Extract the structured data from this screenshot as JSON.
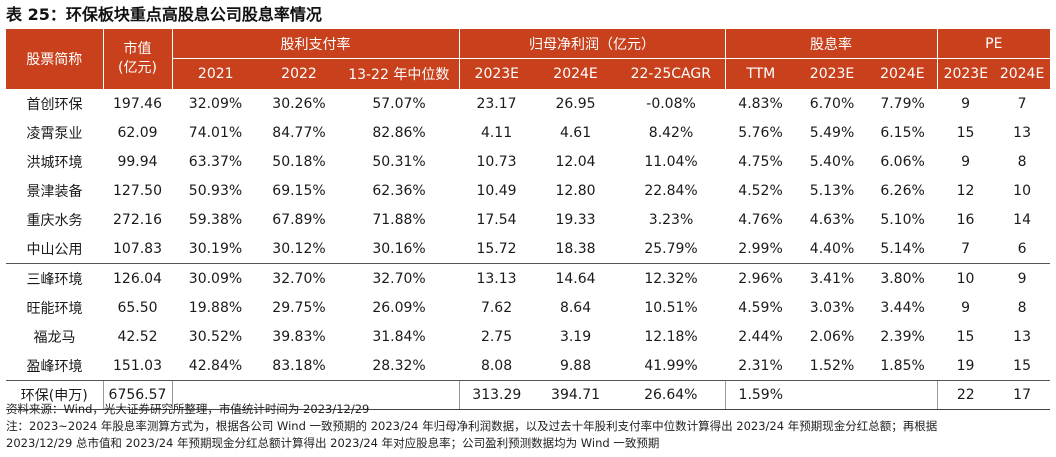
{
  "title": "表 25：环保板块重点高股息公司股息率情况",
  "header": {
    "stock_name": "股票简称",
    "market_cap_line1": "市值",
    "market_cap_line2": "(亿元)",
    "payout_group": "股利支付率",
    "profit_group": "归母净利润（亿元）",
    "yield_group": "股息率",
    "pe_group": "PE",
    "sub": [
      "2021",
      "2022",
      "13-22 年中位数",
      "2023E",
      "2024E",
      "22-25CAGR",
      "TTM",
      "2023E",
      "2024E",
      "2023E",
      "2024E"
    ]
  },
  "rows": [
    {
      "name": "首创环保",
      "mcap": "197.46",
      "p2021": "32.09%",
      "p2022": "30.26%",
      "pmed": "57.07%",
      "np23": "23.17",
      "np24": "26.95",
      "cagr": "-0.08%",
      "ttm": "4.83%",
      "y23": "6.70%",
      "y24": "7.79%",
      "pe23": "9",
      "pe24": "7"
    },
    {
      "name": "凌霄泵业",
      "mcap": "62.09",
      "p2021": "74.01%",
      "p2022": "84.77%",
      "pmed": "82.86%",
      "np23": "4.11",
      "np24": "4.61",
      "cagr": "8.42%",
      "ttm": "5.76%",
      "y23": "5.49%",
      "y24": "6.15%",
      "pe23": "15",
      "pe24": "13"
    },
    {
      "name": "洪城环境",
      "mcap": "99.94",
      "p2021": "63.37%",
      "p2022": "50.18%",
      "pmed": "50.31%",
      "np23": "10.73",
      "np24": "12.04",
      "cagr": "11.04%",
      "ttm": "4.75%",
      "y23": "5.40%",
      "y24": "6.06%",
      "pe23": "9",
      "pe24": "8"
    },
    {
      "name": "景津装备",
      "mcap": "127.50",
      "p2021": "50.93%",
      "p2022": "69.15%",
      "pmed": "62.36%",
      "np23": "10.49",
      "np24": "12.80",
      "cagr": "22.84%",
      "ttm": "4.52%",
      "y23": "5.13%",
      "y24": "6.26%",
      "pe23": "12",
      "pe24": "10"
    },
    {
      "name": "重庆水务",
      "mcap": "272.16",
      "p2021": "59.38%",
      "p2022": "67.89%",
      "pmed": "71.88%",
      "np23": "17.54",
      "np24": "19.33",
      "cagr": "3.23%",
      "ttm": "4.76%",
      "y23": "4.63%",
      "y24": "5.10%",
      "pe23": "16",
      "pe24": "14"
    },
    {
      "name": "中山公用",
      "mcap": "107.83",
      "p2021": "30.19%",
      "p2022": "30.12%",
      "pmed": "30.16%",
      "np23": "15.72",
      "np24": "18.38",
      "cagr": "25.79%",
      "ttm": "2.99%",
      "y23": "4.40%",
      "y24": "5.14%",
      "pe23": "7",
      "pe24": "6"
    },
    {
      "name": "三峰环境",
      "mcap": "126.04",
      "p2021": "30.09%",
      "p2022": "32.70%",
      "pmed": "32.70%",
      "np23": "13.13",
      "np24": "14.64",
      "cagr": "12.32%",
      "ttm": "2.96%",
      "y23": "3.41%",
      "y24": "3.80%",
      "pe23": "10",
      "pe24": "9"
    },
    {
      "name": "旺能环境",
      "mcap": "65.50",
      "p2021": "19.88%",
      "p2022": "29.75%",
      "pmed": "26.09%",
      "np23": "7.62",
      "np24": "8.64",
      "cagr": "10.51%",
      "ttm": "4.59%",
      "y23": "3.03%",
      "y24": "3.44%",
      "pe23": "9",
      "pe24": "8"
    },
    {
      "name": "福龙马",
      "mcap": "42.52",
      "p2021": "30.52%",
      "p2022": "39.83%",
      "pmed": "31.84%",
      "np23": "2.75",
      "np24": "3.19",
      "cagr": "12.18%",
      "ttm": "2.44%",
      "y23": "2.06%",
      "y24": "2.39%",
      "pe23": "15",
      "pe24": "13"
    },
    {
      "name": "盈峰环境",
      "mcap": "151.03",
      "p2021": "42.84%",
      "p2022": "83.18%",
      "pmed": "28.32%",
      "np23": "8.08",
      "np24": "9.88",
      "cagr": "41.99%",
      "ttm": "2.31%",
      "y23": "1.52%",
      "y24": "1.85%",
      "pe23": "19",
      "pe24": "15"
    }
  ],
  "total": {
    "name": "环保(申万)",
    "mcap": "6756.57",
    "p2021": "",
    "p2022": "",
    "pmed": "",
    "np23": "313.29",
    "np24": "394.71",
    "cagr": "26.64%",
    "ttm": "1.59%",
    "y23": "",
    "y24": "",
    "pe23": "22",
    "pe24": "17"
  },
  "notes": [
    "资料来源：Wind，光大证券研究所整理，市值统计时间为 2023/12/29",
    "注：2023~2024 年股息率测算方式为，根据各公司 Wind 一致预期的 2023/24 年归母净利润数据，以及过去十年股利支付率中位数计算得出 2023/24 年预期现金分红总额；再根据",
    "2023/12/29 总市值和 2023/24 年预期现金分红总额计算得出 2023/24 年对应股息率；公司盈利预测数据均为 Wind 一致预期"
  ],
  "colors": {
    "header_bg": "#c9411c",
    "header_text": "#ffffff"
  }
}
